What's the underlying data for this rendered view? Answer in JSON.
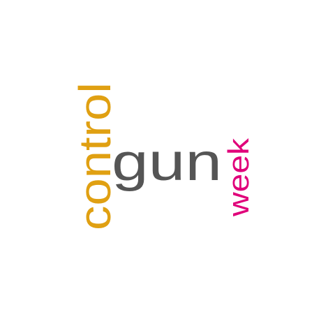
{
  "words": [
    {
      "text": "control",
      "color": "#e0a012",
      "orientation": "vertical"
    },
    {
      "text": "gun",
      "color": "#555555",
      "orientation": "horizontal"
    },
    {
      "text": "week",
      "color": "#e0007a",
      "orientation": "vertical"
    }
  ]
}
